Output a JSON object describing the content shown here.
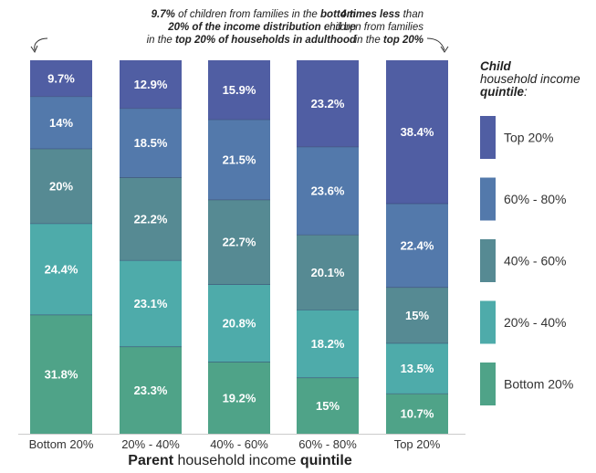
{
  "chart_data": {
    "type": "bar",
    "stacked": true,
    "categories": [
      "Bottom 20%",
      "20% - 40%",
      "40% - 60%",
      "60% - 80%",
      "Top 20%"
    ],
    "series": [
      {
        "name": "Bottom 20%",
        "color": "#4fa388",
        "values": [
          31.8,
          23.3,
          19.2,
          15,
          10.7
        ],
        "labels": [
          "31.8%",
          "23.3%",
          "19.2%",
          "15%",
          "10.7%"
        ]
      },
      {
        "name": "20% - 40%",
        "color": "#4eabaa",
        "values": [
          24.4,
          23.1,
          20.8,
          18.2,
          13.5
        ],
        "labels": [
          "24.4%",
          "23.1%",
          "20.8%",
          "18.2%",
          "13.5%"
        ]
      },
      {
        "name": "40% - 60%",
        "color": "#568a93",
        "values": [
          20,
          22.2,
          22.7,
          20.1,
          15
        ],
        "labels": [
          "20%",
          "22.2%",
          "22.7%",
          "20.1%",
          "15%"
        ]
      },
      {
        "name": "60% - 80%",
        "color": "#5379ab",
        "values": [
          14,
          18.5,
          21.5,
          23.6,
          22.4
        ],
        "labels": [
          "14%",
          "18.5%",
          "21.5%",
          "23.6%",
          "22.4%"
        ]
      },
      {
        "name": "Top 20%",
        "color": "#505ea3",
        "values": [
          9.7,
          12.9,
          15.9,
          23.2,
          38.4
        ],
        "labels": [
          "9.7%",
          "12.9%",
          "15.9%",
          "23.2%",
          "38.4%"
        ]
      }
    ],
    "legend": {
      "title_line1": "Child",
      "title_line2": "household income",
      "title_line3": "quintile",
      "title_suffix": ":",
      "placement": "right",
      "order": [
        "Top 20%",
        "60% - 80%",
        "40% - 60%",
        "20% - 40%",
        "Bottom 20%"
      ]
    },
    "xlabel": {
      "bold": "Parent",
      "rest": " household income ",
      "bold2": "quintile"
    },
    "ylim": [
      0,
      100
    ],
    "annotations": [
      {
        "id": "left",
        "line1": {
          "b1": "9.7%",
          "t1": " of children from families in the ",
          "b2": "bottom"
        },
        "line2": {
          "b1": "20% of the income distribution",
          "t1": " end up"
        },
        "line3": {
          "t1": "in the ",
          "b1": "top 20% of households in adulthood"
        }
      },
      {
        "id": "right",
        "line1": {
          "b1": "4 times less",
          "t1": " than"
        },
        "line2": {
          "t1": "children from families"
        },
        "line3": {
          "t1": "in the ",
          "b1": "top 20%"
        }
      }
    ]
  }
}
